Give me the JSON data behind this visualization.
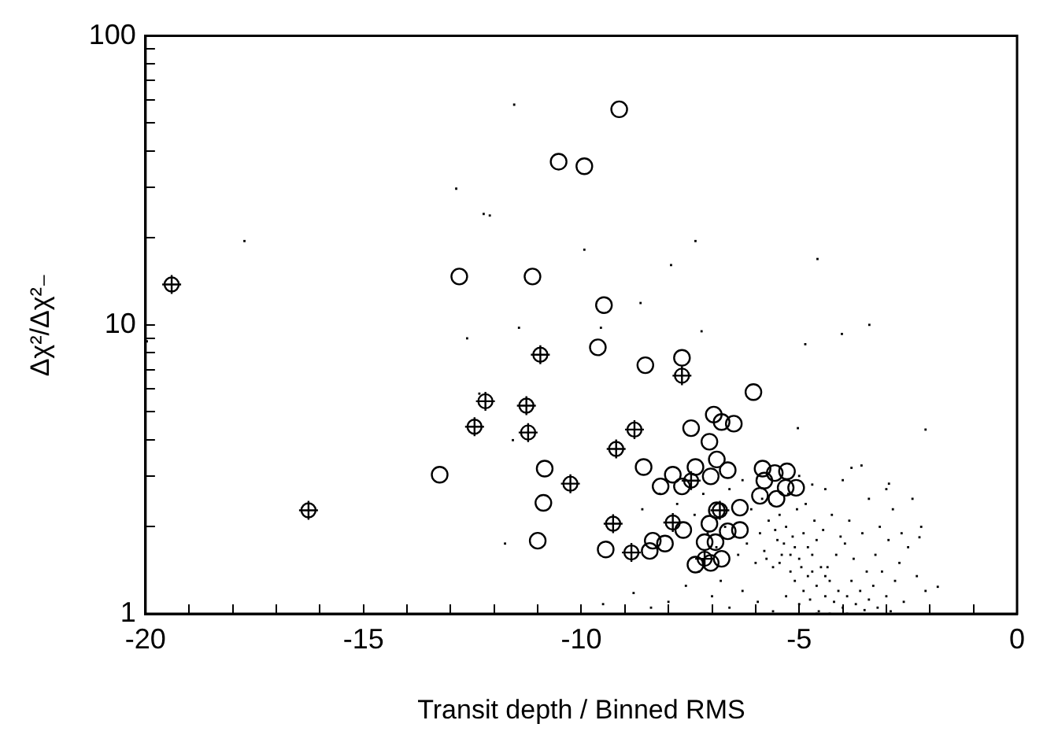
{
  "chart_data": {
    "type": "scatter",
    "xlabel": "Transit depth / Binned RMS",
    "ylabel": "Δχ²/Δχ²₋",
    "xlim": [
      -20,
      0
    ],
    "ylim": [
      1,
      100
    ],
    "log": "y",
    "grid": false,
    "legend": false,
    "xticks": [
      -20,
      {
        "value": -19,
        "label": null
      },
      {
        "value": -18,
        "label": null
      },
      {
        "value": -17,
        "label": null
      },
      {
        "value": -16,
        "label": null
      },
      -15,
      {
        "value": -14,
        "label": null
      },
      {
        "value": -13,
        "label": null
      },
      {
        "value": -12,
        "label": null
      },
      {
        "value": -11,
        "label": null
      },
      -10,
      {
        "value": -9,
        "label": null
      },
      {
        "value": -8,
        "label": null
      },
      {
        "value": -7,
        "label": null
      },
      {
        "value": -6,
        "label": null
      },
      -5,
      {
        "value": -4,
        "label": null
      },
      {
        "value": -3,
        "label": null
      },
      {
        "value": -2,
        "label": null
      },
      {
        "value": -1,
        "label": null
      },
      0
    ],
    "yticks": [
      1,
      {
        "value": 2,
        "label": null
      },
      {
        "value": 3,
        "label": null
      },
      {
        "value": 4,
        "label": null
      },
      {
        "value": 5,
        "label": null
      },
      {
        "value": 6,
        "label": null
      },
      {
        "value": 7,
        "label": null
      },
      {
        "value": 8,
        "label": null
      },
      {
        "value": 9,
        "label": null
      },
      10,
      {
        "value": 20,
        "label": null
      },
      {
        "value": 30,
        "label": null
      },
      {
        "value": 40,
        "label": null
      },
      {
        "value": 50,
        "label": null
      },
      {
        "value": 60,
        "label": null
      },
      {
        "value": 70,
        "label": null
      },
      {
        "value": 80,
        "label": null
      },
      {
        "value": 90,
        "label": null
      },
      100
    ],
    "series": [
      {
        "color": "#000000",
        "marker": "square",
        "x": [
          -6.4,
          -6.2,
          -6.0,
          -5.9,
          -5.8,
          -5.7,
          -5.6,
          -5.5,
          -5.4,
          -5.3,
          -5.2,
          -5.1,
          -5.0,
          -4.9,
          -4.8,
          -4.7,
          -4.6,
          -4.5,
          -4.4,
          -4.3,
          -4.2,
          -4.1,
          -4.0,
          -3.9,
          -3.8,
          -3.7,
          -3.6,
          -3.5,
          -3.4,
          -3.3,
          -3.2,
          -3.1,
          -3.0,
          -2.9,
          -2.8,
          -2.7,
          -2.6,
          -2.5,
          -2.3,
          -2.1,
          -6.8,
          -7.0,
          -7.3,
          -7.6,
          -8.0,
          -8.4,
          -8.8,
          -9.5,
          -6.6,
          -6.3,
          -5.95,
          -5.6,
          -5.3,
          -5.0,
          -4.75,
          -4.55,
          -4.35,
          -4.15,
          -3.95,
          -3.75,
          -3.55,
          -3.45,
          -3.25,
          -3.15,
          -2.95,
          -2.85,
          -2.65,
          -2.4,
          -2.2,
          -6.1,
          -5.85,
          -5.65,
          -5.45,
          -5.25,
          -5.05,
          -4.85,
          -4.65,
          -4.45,
          -4.25,
          -4.05,
          -3.85,
          -4.6,
          -4.8,
          -5.15,
          -5.35,
          -5.55,
          -6.5,
          -6.7,
          -6.9,
          -7.1,
          -7.4,
          -7.8,
          -8.2,
          -8.6,
          -7.2,
          -6.6,
          -6.3,
          -5.0,
          -4.7,
          -4.4,
          -4.0,
          -3.8,
          -3.4,
          -3.0,
          -5.75,
          -5.45,
          -5.2,
          -4.95,
          -4.7,
          -4.4,
          -4.9,
          -5.1,
          -4.3,
          -3.9,
          -4.6,
          -11.54,
          -12.87,
          -12.24,
          -12.1,
          -17.73,
          -9.93,
          -7.38,
          -7.94,
          -4.58,
          -8.64,
          -19.97,
          -12.62,
          -11.43,
          -12.34,
          -11.57,
          -11.75,
          -3.39,
          -4.02,
          -4.86,
          -2.1,
          -1.82,
          -2.94,
          -3.57,
          -2.24,
          -5.03,
          -9.55,
          -7.24
        ],
        "values": [
          1.6,
          1.75,
          1.5,
          1.9,
          1.65,
          2.1,
          1.45,
          1.8,
          1.6,
          2.0,
          1.4,
          1.7,
          1.55,
          1.9,
          1.35,
          1.6,
          1.25,
          1.45,
          1.15,
          1.3,
          1.1,
          1.2,
          1.05,
          1.15,
          1.3,
          1.08,
          1.2,
          1.03,
          1.12,
          1.25,
          1.05,
          1.4,
          1.15,
          1.02,
          1.3,
          1.5,
          1.1,
          1.7,
          1.35,
          1.2,
          1.3,
          1.15,
          1.4,
          1.25,
          1.1,
          1.05,
          1.18,
          1.08,
          1.05,
          1.2,
          1.1,
          1.02,
          1.15,
          1.08,
          1.12,
          1.02,
          1.45,
          1.6,
          1.75,
          1.55,
          1.9,
          1.4,
          1.6,
          2.0,
          1.8,
          2.3,
          1.9,
          2.5,
          2.0,
          2.3,
          2.5,
          2.4,
          2.2,
          2.6,
          2.3,
          2.4,
          2.1,
          1.95,
          2.2,
          1.85,
          2.1,
          1.8,
          1.7,
          1.85,
          1.75,
          1.95,
          1.85,
          2.0,
          1.7,
          1.9,
          2.2,
          2.4,
          2.6,
          2.3,
          2.6,
          2.7,
          2.9,
          3.0,
          2.8,
          2.7,
          2.9,
          3.2,
          2.5,
          2.7,
          1.55,
          1.5,
          1.6,
          1.45,
          1.4,
          1.35,
          1.2,
          1.3,
          1.0,
          1.0,
          1.0,
          57.8,
          29.6,
          24.2,
          23.9,
          19.5,
          18.2,
          19.5,
          16.1,
          16.9,
          11.9,
          8.77,
          8.98,
          9.77,
          5.78,
          3.99,
          1.75,
          10.0,
          9.3,
          8.57,
          4.34,
          1.24,
          2.82,
          3.26,
          1.84,
          4.39,
          9.77,
          9.5
        ]
      },
      {
        "color": "#000000",
        "marker": "circle",
        "x": [
          -9.13,
          -10.52,
          -9.93,
          -12.8,
          -11.12,
          -9.48,
          -10.84,
          -13.25,
          -10.87,
          -11.0,
          -9.62,
          -8.53,
          -7.69,
          -6.05,
          -6.96,
          -6.78,
          -6.5,
          -7.48,
          -7.06,
          -8.57,
          -7.38,
          -6.89,
          -6.64,
          -7.9,
          -7.03,
          -8.18,
          -7.69,
          -6.36,
          -7.06,
          -7.66,
          -6.64,
          -8.36,
          -8.08,
          -7.17,
          -6.92,
          -9.44,
          -8.43,
          -7.38,
          -7.03,
          -6.78,
          -6.89,
          -5.84,
          -5.56,
          -5.28,
          -5.8,
          -5.31,
          -5.9,
          -5.52,
          -5.07,
          -6.36
        ],
        "values": [
          55.7,
          36.7,
          35.4,
          14.7,
          14.7,
          11.7,
          3.18,
          3.03,
          2.42,
          1.79,
          8.36,
          7.25,
          7.69,
          5.85,
          4.89,
          4.61,
          4.55,
          4.39,
          3.94,
          3.22,
          3.22,
          3.42,
          3.14,
          3.03,
          2.99,
          2.76,
          2.76,
          2.33,
          2.05,
          1.95,
          1.93,
          1.79,
          1.75,
          1.77,
          1.77,
          1.67,
          1.65,
          1.48,
          1.5,
          1.55,
          2.28,
          3.18,
          3.07,
          3.11,
          2.89,
          2.73,
          2.56,
          2.5,
          2.73,
          1.95
        ]
      },
      {
        "color": "#000000",
        "marker": "cross",
        "x": [
          -19.4,
          -10.94,
          -12.2,
          -11.26,
          -12.45,
          -11.22,
          -16.26,
          -7.69,
          -8.78,
          -9.2,
          -7.48,
          -10.25,
          -6.82,
          -9.27,
          -7.9,
          -8.85,
          -7.17
        ],
        "values": [
          13.8,
          7.88,
          5.44,
          5.25,
          4.44,
          4.24,
          2.28,
          6.67,
          4.34,
          3.72,
          2.89,
          2.82,
          2.28,
          2.05,
          2.07,
          1.63,
          1.55
        ]
      }
    ]
  }
}
